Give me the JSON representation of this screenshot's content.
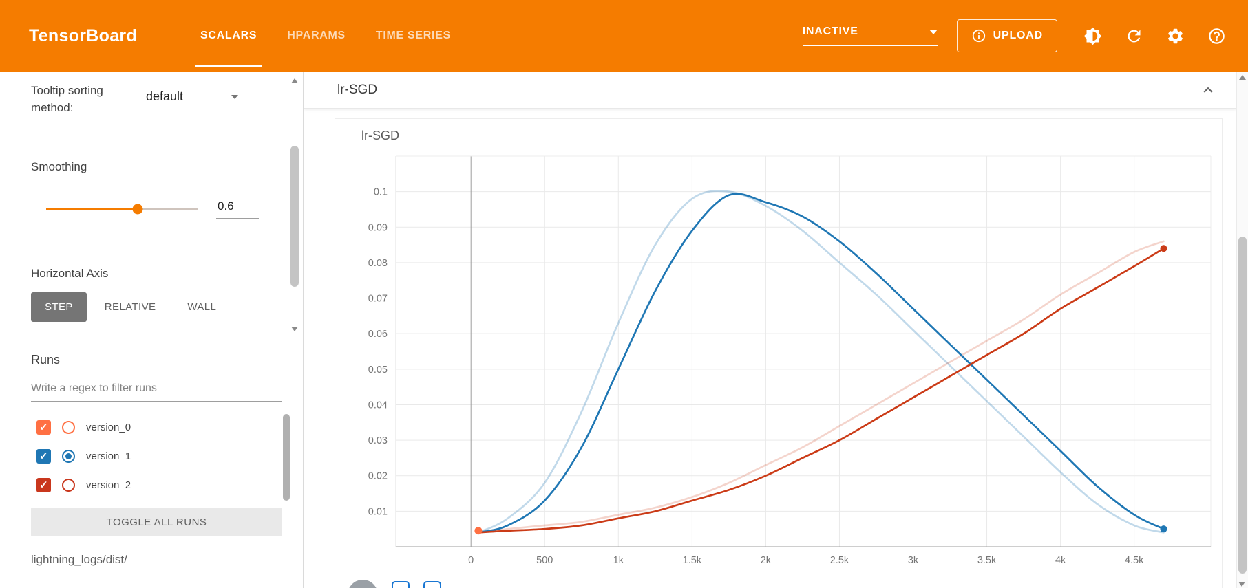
{
  "header": {
    "logo": "TensorBoard",
    "bg_color": "#f57c00",
    "tabs": [
      {
        "label": "SCALARS",
        "active": true
      },
      {
        "label": "HPARAMS",
        "active": false
      },
      {
        "label": "TIME SERIES",
        "active": false
      }
    ],
    "status_dropdown": {
      "value": "INACTIVE"
    },
    "upload_button": {
      "label": "UPLOAD",
      "icon": "info-icon"
    },
    "icons": [
      "theme-toggle-icon",
      "refresh-icon",
      "settings-icon",
      "help-icon"
    ]
  },
  "sidebar": {
    "tooltip_sorting": {
      "label": "Tooltip sorting method:",
      "value": "default"
    },
    "smoothing": {
      "label": "Smoothing",
      "value": "0.6",
      "fraction": 0.6,
      "accent_color": "#f57c00"
    },
    "horizontal_axis": {
      "label": "Horizontal Axis",
      "options": [
        "STEP",
        "RELATIVE",
        "WALL"
      ],
      "active": "STEP"
    },
    "runs": {
      "label": "Runs",
      "filter_placeholder": "Write a regex to filter runs",
      "items": [
        {
          "name": "version_0",
          "color": "#ff7043",
          "checked": true,
          "radio_selected": false
        },
        {
          "name": "version_1",
          "color": "#1f77b4",
          "checked": true,
          "radio_selected": true
        },
        {
          "name": "version_2",
          "color": "#c9371d",
          "checked": true,
          "radio_selected": false
        }
      ],
      "toggle_all_label": "TOGGLE ALL RUNS",
      "log_path": "lightning_logs/dist/"
    }
  },
  "main": {
    "section_title": "lr-SGD"
  },
  "chart_data": {
    "type": "line",
    "title": "lr-SGD",
    "xlabel": "step",
    "xlim": [
      -510,
      5020
    ],
    "ylim": [
      0,
      0.11
    ],
    "x_ticks": [
      0,
      500,
      1000,
      1500,
      2000,
      2500,
      3000,
      3500,
      4000,
      4500
    ],
    "x_tick_labels": [
      "0",
      "500",
      "1k",
      "1.5k",
      "2k",
      "2.5k",
      "3k",
      "3.5k",
      "4k",
      "4.5k"
    ],
    "y_ticks": [
      0.01,
      0.02,
      0.03,
      0.04,
      0.05,
      0.06,
      0.07,
      0.08,
      0.09,
      0.1
    ],
    "y_tick_labels": [
      "0.01",
      "0.02",
      "0.03",
      "0.04",
      "0.05",
      "0.06",
      "0.07",
      "0.08",
      "0.09",
      "0.1"
    ],
    "grid": true,
    "smoothing_applied": 0.6,
    "series": [
      {
        "name": "version_1 (unsmoothed)",
        "color": "#1f77b4",
        "opacity": 0.28,
        "style": "line",
        "end_dot": false,
        "x": [
          50,
          250,
          500,
          750,
          1000,
          1250,
          1500,
          1750,
          2000,
          2250,
          2500,
          2750,
          3000,
          3250,
          3500,
          3750,
          4000,
          4250,
          4500,
          4700
        ],
        "y": [
          0.004,
          0.008,
          0.018,
          0.038,
          0.063,
          0.085,
          0.098,
          0.1,
          0.096,
          0.089,
          0.08,
          0.071,
          0.061,
          0.051,
          0.041,
          0.031,
          0.021,
          0.012,
          0.006,
          0.004
        ]
      },
      {
        "name": "version_2 (unsmoothed)",
        "color": "#cb3b17",
        "opacity": 0.22,
        "style": "line",
        "end_dot": false,
        "x": [
          50,
          250,
          500,
          750,
          1000,
          1250,
          1500,
          1750,
          2000,
          2250,
          2500,
          2750,
          3000,
          3250,
          3500,
          3750,
          4000,
          4250,
          4500,
          4700
        ],
        "y": [
          0.004,
          0.005,
          0.006,
          0.007,
          0.009,
          0.011,
          0.014,
          0.018,
          0.023,
          0.028,
          0.034,
          0.04,
          0.046,
          0.052,
          0.058,
          0.064,
          0.071,
          0.077,
          0.083,
          0.086
        ]
      },
      {
        "name": "version_1",
        "color": "#1f77b4",
        "opacity": 1,
        "style": "line",
        "end_dot": true,
        "x": [
          50,
          250,
          500,
          750,
          1000,
          1250,
          1500,
          1750,
          2000,
          2250,
          2500,
          2750,
          3000,
          3250,
          3500,
          3750,
          4000,
          4250,
          4500,
          4700
        ],
        "y": [
          0.004,
          0.006,
          0.013,
          0.028,
          0.05,
          0.072,
          0.089,
          0.099,
          0.097,
          0.093,
          0.086,
          0.077,
          0.067,
          0.057,
          0.047,
          0.037,
          0.027,
          0.017,
          0.009,
          0.005
        ]
      },
      {
        "name": "version_2",
        "color": "#cb3b17",
        "opacity": 1,
        "style": "line",
        "end_dot": true,
        "x": [
          50,
          250,
          500,
          750,
          1000,
          1250,
          1500,
          1750,
          2000,
          2250,
          2500,
          2750,
          3000,
          3250,
          3500,
          3750,
          4000,
          4250,
          4500,
          4700
        ],
        "y": [
          0.004,
          0.0045,
          0.005,
          0.006,
          0.008,
          0.01,
          0.013,
          0.016,
          0.02,
          0.025,
          0.03,
          0.036,
          0.042,
          0.048,
          0.054,
          0.06,
          0.067,
          0.073,
          0.079,
          0.084
        ]
      },
      {
        "name": "version_0",
        "color": "#ff7043",
        "opacity": 1,
        "style": "point",
        "end_dot": false,
        "x": [
          50
        ],
        "y": [
          0.0045
        ]
      }
    ]
  }
}
